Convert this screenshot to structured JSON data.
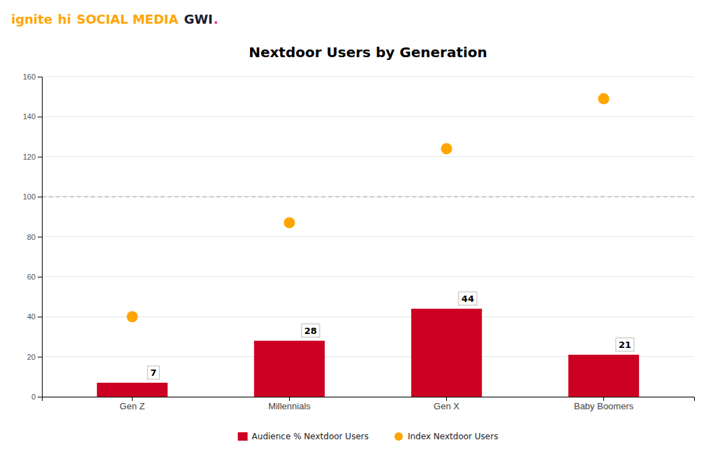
{
  "chart_data": {
    "type": "bar",
    "title": "Nextdoor Users by Generation",
    "categories": [
      "Gen Z",
      "Millennials",
      "Gen X",
      "Baby Boomers"
    ],
    "series": [
      {
        "name": "Audience % Nextdoor Users",
        "type": "bar",
        "color": "#cc0022",
        "values": [
          7,
          28,
          44,
          21
        ],
        "data_labels": true
      },
      {
        "name": "Index Nextdoor Users",
        "type": "scatter",
        "color": "#FFA500",
        "marker": "circle",
        "values": [
          40,
          87,
          124,
          149
        ]
      }
    ],
    "reference_line": 100,
    "ylim": [
      0,
      160
    ],
    "yticks": [
      0,
      20,
      40,
      60,
      80,
      100,
      120,
      140,
      160
    ],
    "grid": true,
    "legend": "bottom",
    "annotations": [
      {
        "text": "ignite",
        "color": "#FFA500"
      },
      {
        "text": "hi",
        "color": "#FFA500"
      },
      {
        "text": "SOCIAL MEDIA",
        "color": "#FFA500"
      },
      {
        "text": "GWI",
        "color": "#1a1a2e"
      },
      {
        "text": ".",
        "color": "#e91e8c"
      }
    ]
  }
}
